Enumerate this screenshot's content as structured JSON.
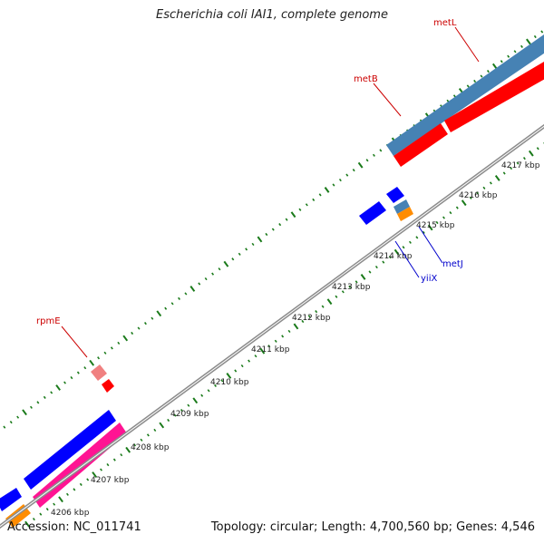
{
  "title": "Escherichia coli IAI1, complete genome",
  "footer": {
    "accession": "Accession: NC_011741",
    "summary": "Topology: circular; Length: 4,700,560 bp; Genes: 4,546"
  },
  "colors": {
    "backbone": "#8c8c8c",
    "tick": "#1a7a1a",
    "forward_label": "#cc0000",
    "reverse_label": "#0000cc",
    "red": "#ff0000",
    "steelblue": "#4682b4",
    "blue": "#0000ff",
    "pink": "#ff1493",
    "orange": "#ff8c00",
    "lightpink": "#f08080"
  },
  "ticks": [
    {
      "label": "4206 kbp"
    },
    {
      "label": "4207 kbp"
    },
    {
      "label": "4208 kbp"
    },
    {
      "label": "4209 kbp"
    },
    {
      "label": "4210 kbp"
    },
    {
      "label": "4211 kbp"
    },
    {
      "label": "4212 kbp"
    },
    {
      "label": "4213 kbp"
    },
    {
      "label": "4214 kbp"
    },
    {
      "label": "4215 kbp"
    },
    {
      "label": "4216 kbp"
    },
    {
      "label": "4217 kbp"
    }
  ],
  "genes": [
    {
      "name": "metL",
      "strand": "forward",
      "color": "steelblue"
    },
    {
      "name": "metB",
      "strand": "forward",
      "color": "red"
    },
    {
      "name": "rpmE",
      "strand": "forward",
      "color": "lightpink"
    },
    {
      "name": "metJ",
      "strand": "reverse",
      "color": "steelblue"
    },
    {
      "name": "yiiX",
      "strand": "reverse",
      "color": "blue"
    }
  ]
}
